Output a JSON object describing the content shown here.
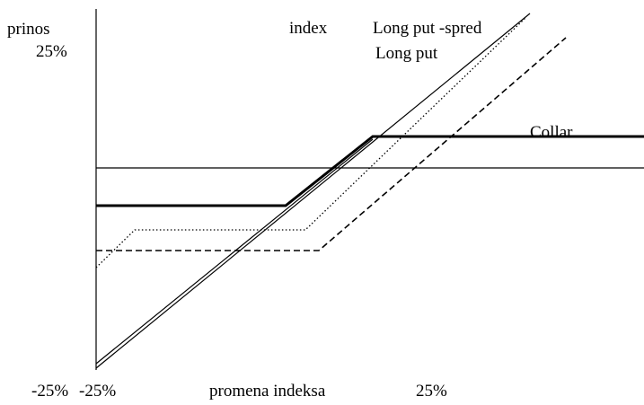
{
  "axis": {
    "y_label": "prinos",
    "y_top": "25%",
    "x_label": "promena indeksa",
    "x_left_a": "-25%",
    "x_left_b": "-25%",
    "x_right": "25%"
  },
  "lines": {
    "index": "index",
    "long_put_spread": "Long put -spred",
    "long_put": "Long put",
    "collar": "Collar"
  }
}
